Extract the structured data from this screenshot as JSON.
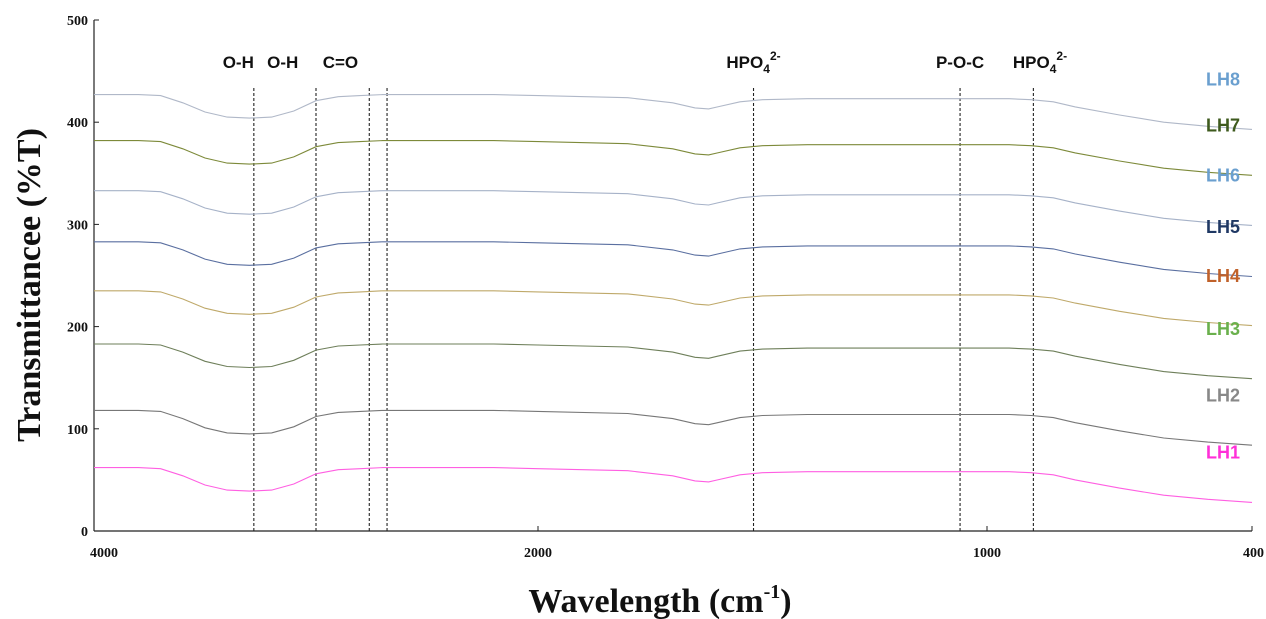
{
  "chart_data": {
    "type": "line",
    "xlabel": "Wavelength (cm",
    "xlabel_sup": "-1",
    "xlabel_close": ")",
    "ylabel": "Transmittancee (%T)",
    "xlim": [
      4000,
      400
    ],
    "ylim": [
      0,
      500
    ],
    "x_ticks": [
      4000,
      2000,
      1000,
      400
    ],
    "y_ticks": [
      0,
      100,
      200,
      300,
      400,
      500
    ],
    "x": [
      4000,
      3800,
      3700,
      3600,
      3500,
      3400,
      3300,
      3200,
      3100,
      3000,
      2900,
      2800,
      2700,
      2600,
      2400,
      2200,
      2000,
      1800,
      1700,
      1650,
      1620,
      1600,
      1550,
      1500,
      1400,
      1300,
      1200,
      1100,
      1000,
      950,
      900,
      850,
      800,
      700,
      600,
      500,
      400
    ],
    "shape": [
      0,
      0,
      -1,
      -8,
      -17,
      -22,
      -23,
      -22,
      -16,
      -6,
      -2,
      -1,
      0,
      0,
      0,
      0,
      -1,
      -3,
      -8,
      -13,
      -14,
      -12,
      -7,
      -5,
      -4,
      -4,
      -4,
      -4,
      -4,
      -4,
      -5,
      -7,
      -12,
      -20,
      -27,
      -31,
      -34
    ],
    "series": [
      {
        "name": "LH1",
        "offset": 62,
        "color": "#ff2fd8",
        "line_color": "#ff5fe2"
      },
      {
        "name": "LH2",
        "offset": 118,
        "color": "#888888",
        "line_color": "#777777"
      },
      {
        "name": "LH3",
        "offset": 183,
        "color": "#6ab04c",
        "line_color": "#6e7f5a"
      },
      {
        "name": "LH4",
        "offset": 235,
        "color": "#c0612a",
        "line_color": "#bfa96a"
      },
      {
        "name": "LH5",
        "offset": 283,
        "color": "#1f3864",
        "line_color": "#5a6fa0"
      },
      {
        "name": "LH6",
        "offset": 333,
        "color": "#6a9fcf",
        "line_color": "#a6b2c8"
      },
      {
        "name": "LH7",
        "offset": 382,
        "color": "#3e5a1e",
        "line_color": "#7d8a3a"
      },
      {
        "name": "LH8",
        "offset": 427,
        "color": "#6a9fcf",
        "line_color": "#b0b8c8"
      }
    ],
    "annotations": [
      {
        "label": "O-H",
        "sup": "",
        "label_x": 3350,
        "lines": [
          3280
        ]
      },
      {
        "label": "O-H",
        "sup": "",
        "label_x": 3150,
        "lines": [
          3000
        ]
      },
      {
        "label": "C=O",
        "sup": "",
        "label_x": 2890,
        "lines": [
          2760,
          2680
        ]
      },
      {
        "label": "HPO",
        "sub": "4",
        "sup": "2-",
        "label_x": 1520,
        "lines": [
          1520
        ]
      },
      {
        "label": "P-O-C",
        "sup": "",
        "label_x": 1060,
        "lines": [
          1060
        ]
      },
      {
        "label": "HPO",
        "sub": "4",
        "sup": "2-",
        "label_x": 880,
        "lines": [
          895
        ]
      }
    ]
  }
}
